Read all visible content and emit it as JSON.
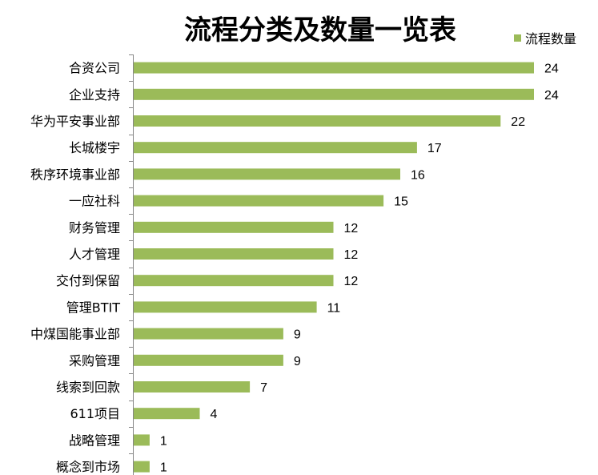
{
  "chart_data": {
    "type": "bar",
    "orientation": "horizontal",
    "title": "流程分类及数量一览表",
    "categories": [
      "合资公司",
      "企业支持",
      "华为平安事业部",
      "长城楼宇",
      "秩序环境事业部",
      "一应社科",
      "财务管理",
      "人才管理",
      "交付到保留",
      "管理BTIT",
      "中煤国能事业部",
      "采购管理",
      "线索到回款",
      "611项目",
      "战略管理",
      "概念到市场"
    ],
    "series": [
      {
        "name": "流程数量",
        "values": [
          24,
          24,
          22,
          17,
          16,
          15,
          12,
          12,
          12,
          11,
          9,
          9,
          7,
          4,
          1,
          1
        ],
        "color": "#9BBB59"
      }
    ],
    "xlim": [
      0,
      24
    ],
    "grid": false,
    "legend": "top-right",
    "data_labels": true
  }
}
